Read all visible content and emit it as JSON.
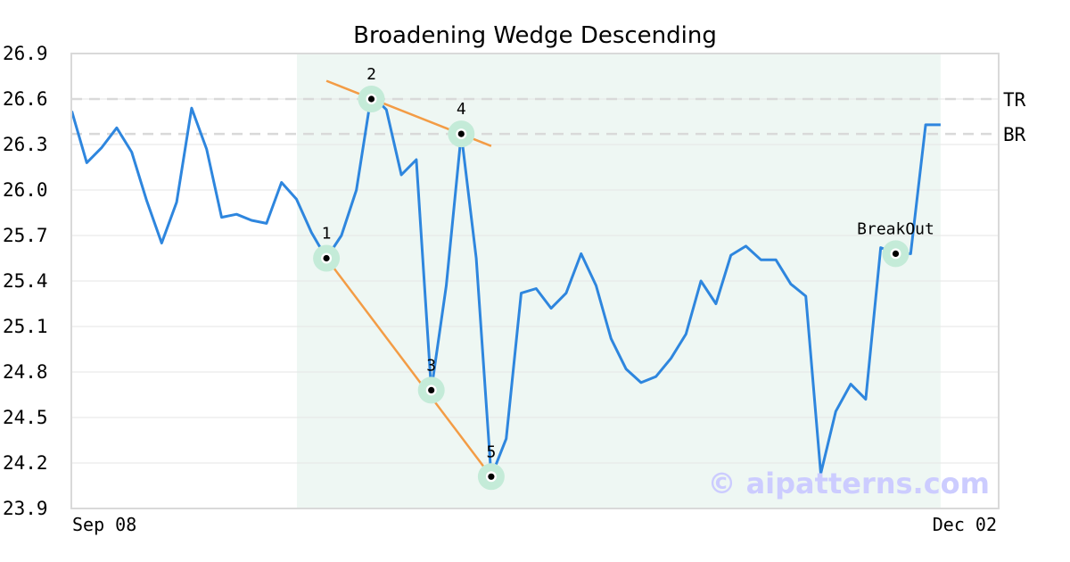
{
  "chart_data": {
    "type": "line",
    "title": "Broadening Wedge Descending",
    "ylim": [
      23.9,
      26.9
    ],
    "y_ticks": [
      "26.9",
      "26.6",
      "26.3",
      "26.0",
      "25.7",
      "25.4",
      "25.1",
      "24.8",
      "24.5",
      "24.2",
      "23.9"
    ],
    "x_labels": [
      "Sep 08",
      "Dec 02"
    ],
    "grid": true,
    "series": [
      {
        "values": [
          26.52,
          26.18,
          26.28,
          26.41,
          26.25,
          25.93,
          25.65,
          25.92,
          26.54,
          26.27,
          25.82,
          25.84,
          25.8,
          25.78,
          26.05,
          25.94,
          25.72,
          25.55,
          25.7,
          26.0,
          26.63,
          26.53,
          26.1,
          26.2,
          24.68,
          25.37,
          26.37,
          25.55,
          24.11,
          24.36,
          25.32,
          25.35,
          25.22,
          25.32,
          25.58,
          25.37,
          25.02,
          24.82,
          24.73,
          24.77,
          24.89,
          25.05,
          25.4,
          25.25,
          25.57,
          25.63,
          25.54,
          25.54,
          25.38,
          25.3,
          24.13,
          24.54,
          24.72,
          24.62,
          25.62,
          25.58,
          25.58,
          26.43,
          26.43
        ]
      }
    ],
    "shaded_region": {
      "start_index": 15,
      "end_index": 58
    },
    "levels": [
      {
        "label": "TR",
        "value": 26.6
      },
      {
        "label": "BR",
        "value": 26.37
      }
    ],
    "trendlines": [
      {
        "from": [
          17,
          26.72
        ],
        "to": [
          28,
          26.29
        ]
      },
      {
        "from": [
          17,
          25.55
        ],
        "to": [
          28,
          24.11
        ]
      }
    ],
    "points": [
      {
        "label": "1",
        "index": 17,
        "value": 25.55
      },
      {
        "label": "2",
        "index": 20,
        "value": 26.6
      },
      {
        "label": "3",
        "index": 24,
        "value": 24.68
      },
      {
        "label": "4",
        "index": 26,
        "value": 26.37
      },
      {
        "label": "5",
        "index": 28,
        "value": 24.11
      },
      {
        "label": "BreakOut",
        "index": 55,
        "value": 25.58
      }
    ],
    "watermark": "© aipatterns.com",
    "colors": {
      "line": "#2e86de",
      "trendline": "#f39c45",
      "shade": "#eef7f3",
      "point_halo": "#c4ebd8",
      "level": "#d9d9d9",
      "grid": "#e6e6e6",
      "watermark": "#ccccff"
    }
  }
}
